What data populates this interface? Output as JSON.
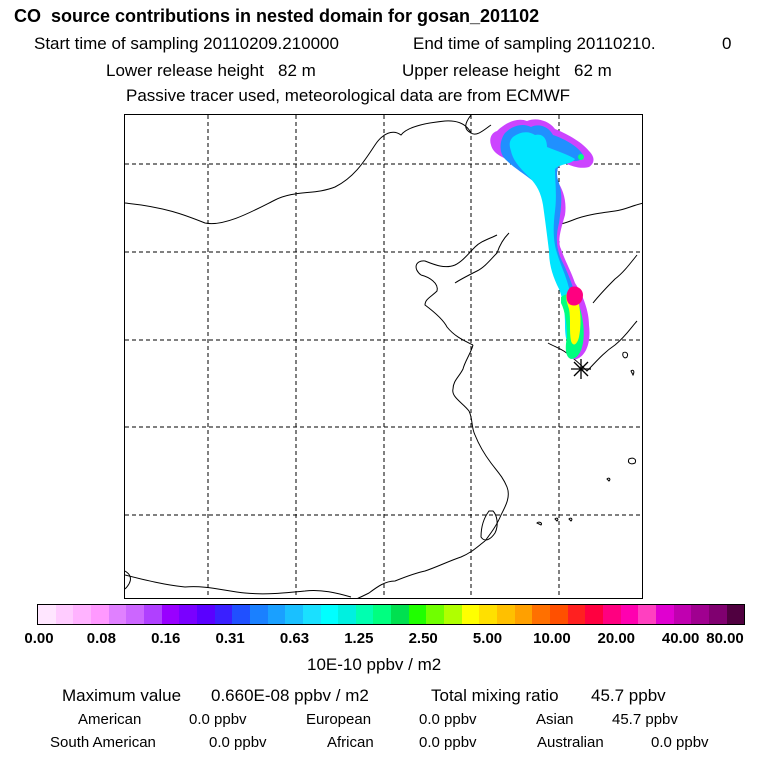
{
  "header": {
    "title": "CO  source contributions in nested domain for gosan_201102",
    "start_label": "Start time of sampling 20110209.210000",
    "end_label": "End time of sampling 20110210.",
    "end_suffix": "0",
    "lower_release": "Lower release height   82 m",
    "upper_release": "Upper release height   62 m",
    "tracer_info": "Passive tracer used, meteorological data are from ECMWF"
  },
  "map": {
    "receptor_marker": "asterisk-icon",
    "plume_colors": [
      "#a020f0",
      "#2090ff",
      "#00e5ff",
      "#00ff80",
      "#ffff00",
      "#ff0080"
    ]
  },
  "colorbar": {
    "colors": [
      "#ffe6ff",
      "#ffccff",
      "#ffb3ff",
      "#ff99ff",
      "#e080ff",
      "#cc66ff",
      "#b040ff",
      "#9900ff",
      "#7a00ff",
      "#5a00ff",
      "#3a20ff",
      "#2050ff",
      "#1a80ff",
      "#1aa0ff",
      "#1ac0ff",
      "#1ae0ff",
      "#00ffff",
      "#00f0e0",
      "#00ffb0",
      "#00ff80",
      "#00e050",
      "#20ff00",
      "#70ff00",
      "#b0ff00",
      "#ffff00",
      "#ffe000",
      "#ffc000",
      "#ffa000",
      "#ff7000",
      "#ff5000",
      "#ff2020",
      "#ff0040",
      "#ff0080",
      "#ff00b0",
      "#ff40c0",
      "#e000d0",
      "#c000b0",
      "#a00090",
      "#800070",
      "#500040"
    ],
    "tick_labels": [
      "0.00",
      "0.08",
      "0.16",
      "0.31",
      "0.63",
      "1.25",
      "2.50",
      "5.00",
      "10.00",
      "20.00",
      "40.00",
      "80.00"
    ],
    "unit": "10E-10 ppbv / m2"
  },
  "summary": {
    "max_label": "Maximum value",
    "max_value": "0.660E-08 ppbv / m2",
    "total_label": "Total mixing ratio",
    "total_value": "45.7 ppbv",
    "regions": [
      {
        "name": "American",
        "value": "0.0 ppbv"
      },
      {
        "name": "European",
        "value": "0.0 ppbv"
      },
      {
        "name": "Asian",
        "value": "45.7 ppbv"
      },
      {
        "name": "South American",
        "value": "0.0 ppbv"
      },
      {
        "name": "African",
        "value": "0.0 ppbv"
      },
      {
        "name": "Australian",
        "value": "0.0 ppbv"
      }
    ]
  }
}
